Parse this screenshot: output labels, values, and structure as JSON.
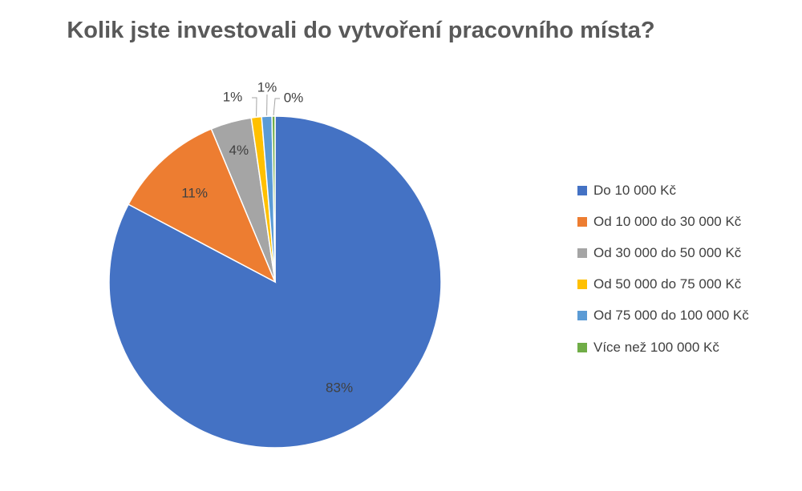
{
  "chart_data": {
    "type": "pie",
    "title": "Kolik jste investovali do vytvoření pracovního místa?",
    "categories": [
      "Do 10 000 Kč",
      "Od 10 000 do 30 000 Kč",
      "Od 30 000 do 50 000 Kč",
      "Od 50 000 do 75 000 Kč",
      "Od 75 000 do 100 000 Kč",
      "Více než 100 000 Kč"
    ],
    "values": [
      83,
      11,
      4,
      1,
      1,
      0
    ],
    "labels": [
      "83%",
      "11%",
      "4%",
      "1%",
      "1%",
      "0%"
    ],
    "colors": [
      "#4472C4",
      "#ED7D31",
      "#A5A5A5",
      "#FFC000",
      "#5B9BD5",
      "#70AD47"
    ],
    "legend_position": "right"
  }
}
